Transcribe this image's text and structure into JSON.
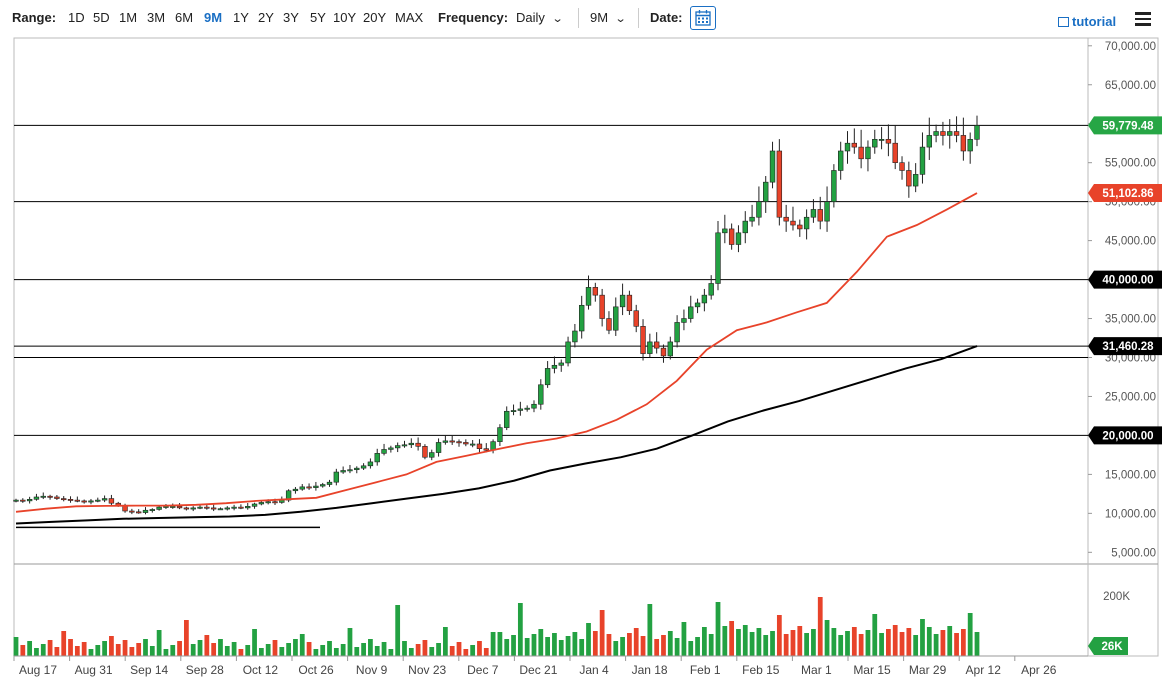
{
  "toolbar": {
    "range_label": "Range:",
    "ranges": [
      "1D",
      "5D",
      "1M",
      "3M",
      "6M",
      "9M",
      "1Y",
      "2Y",
      "3Y",
      "5Y",
      "10Y",
      "20Y",
      "MAX"
    ],
    "active_range": "9M",
    "frequency_label": "Frequency:",
    "frequency_value": "Daily",
    "period_value": "9M",
    "date_label": "Date:",
    "tutorial_label": "tutorial"
  },
  "chart_data": {
    "type": "candlestick",
    "y_axis_ticks": [
      "5,000.00",
      "10,000.00",
      "15,000.00",
      "20,000.00",
      "25,000.00",
      "30,000.00",
      "35,000.00",
      "40,000.00",
      "45,000.00",
      "50,000.00",
      "55,000.00",
      "60,000.00",
      "65,000.00",
      "70,000.00"
    ],
    "ylim": [
      3500,
      71000
    ],
    "x_axis_ticks": [
      "Aug 17",
      "Aug 31",
      "Sep 14",
      "Sep 28",
      "Oct 12",
      "Oct 26",
      "Nov 9",
      "Nov 23",
      "Dec 7",
      "Dec 21",
      "Jan 4",
      "Jan 18",
      "Feb 1",
      "Feb 15",
      "Mar 1",
      "Mar 15",
      "Mar 29",
      "Apr 12",
      "Apr 26"
    ],
    "horizontal_levels": [
      {
        "value": 59779.48,
        "label": "59,779.48",
        "color": "#26a645"
      },
      {
        "value": 51102.86,
        "label": "51,102.86",
        "color": "#e8432a"
      },
      {
        "value": 50000,
        "label": "50,000.00",
        "color": "#000000"
      },
      {
        "value": 40000,
        "label": "40,000.00",
        "color": "#000000"
      },
      {
        "value": 31460.28,
        "label": "31,460.28",
        "color": "#000000"
      },
      {
        "value": 30000,
        "label": "30,000.00",
        "color": "#000000"
      },
      {
        "value": 20000,
        "label": "20,000.00",
        "color": "#000000"
      }
    ],
    "closes": [
      11700,
      11600,
      11800,
      12100,
      12200,
      12100,
      11900,
      11800,
      11700,
      11600,
      11500,
      11600,
      11700,
      11900,
      11300,
      11000,
      10300,
      10200,
      10100,
      10400,
      10500,
      10800,
      10900,
      10900,
      10700,
      10600,
      10700,
      10800,
      10700,
      10600,
      10600,
      10700,
      10800,
      10700,
      10900,
      11200,
      11400,
      11500,
      11400,
      11700,
      12900,
      13100,
      13400,
      13300,
      13500,
      13700,
      14000,
      15300,
      15500,
      15600,
      15800,
      16100,
      16600,
      17700,
      18200,
      18400,
      18700,
      18800,
      19000,
      18600,
      17200,
      17800,
      19100,
      19300,
      19200,
      19100,
      18900,
      18900,
      18300,
      18100,
      19200,
      21000,
      23100,
      23200,
      23400,
      23500,
      24000,
      26500,
      28600,
      29000,
      29300,
      32000,
      33400,
      36700,
      39000,
      38000,
      35000,
      33500,
      36500,
      38000,
      36000,
      34000,
      30500,
      32000,
      31200,
      30200,
      32000,
      34500,
      35000,
      36500,
      37000,
      38000,
      39500,
      46000,
      46500,
      44500,
      46000,
      47500,
      48000,
      50000,
      52500,
      56500,
      48000,
      47500,
      47000,
      46500,
      48000,
      49000,
      47500,
      50000,
      54000,
      56500,
      57500,
      57000,
      55500,
      57000,
      58000,
      58000,
      57500,
      55000,
      54000,
      52000,
      53500,
      57000,
      58500,
      59000,
      58500,
      59000,
      58500,
      56500,
      58000,
      59779.48
    ],
    "sma_fast": [
      10200,
      10600,
      10900,
      10950,
      11000,
      11000,
      11100,
      11300,
      11600,
      11800,
      12000,
      13000,
      14000,
      15000,
      16600,
      17400,
      18200,
      19000,
      19600,
      20500,
      22000,
      24000,
      27000,
      31000,
      33500,
      34500,
      35800,
      37000,
      41000,
      45500,
      47000,
      49000,
      51102.86
    ],
    "sma_slow": [
      8700,
      8900,
      9100,
      9300,
      9400,
      9500,
      9600,
      9800,
      10200,
      10700,
      11300,
      11900,
      12500,
      13200,
      14200,
      15500,
      16400,
      17200,
      18300,
      20000,
      21800,
      23200,
      24400,
      25800,
      27200,
      28600,
      29800,
      31460.28
    ],
    "volume_axis_labels": [
      "200K",
      "26K"
    ]
  }
}
